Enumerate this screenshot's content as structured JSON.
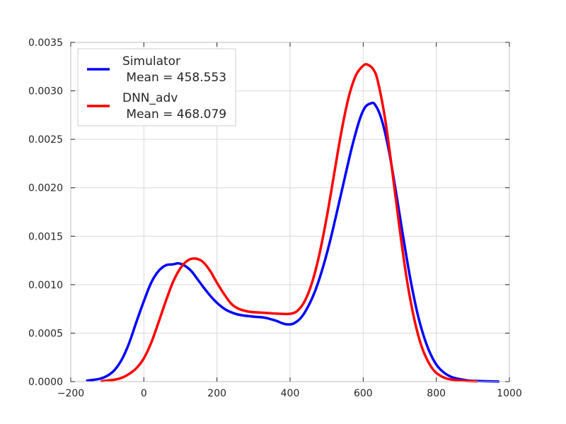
{
  "chart_data": {
    "type": "line",
    "title": "",
    "xlabel": "",
    "ylabel": "",
    "xlim": [
      -200,
      1000
    ],
    "ylim": [
      0,
      0.0035
    ],
    "xticks": [
      "−200",
      "0",
      "200",
      "400",
      "600",
      "800",
      "1000"
    ],
    "xtick_values": [
      -200,
      0,
      200,
      400,
      600,
      800,
      1000
    ],
    "yticks": [
      "0.0000",
      "0.0005",
      "0.0010",
      "0.0015",
      "0.0020",
      "0.0025",
      "0.0030",
      "0.0035"
    ],
    "ytick_values": [
      0,
      0.0005,
      0.001,
      0.0015,
      0.002,
      0.0025,
      0.003,
      0.0035
    ],
    "grid": true,
    "legend": {
      "placement": "top-left",
      "entries": [
        {
          "line1": "Simulator",
          "line2": " Mean = 458.553",
          "color": "#0000ff"
        },
        {
          "line1": "DNN_adv",
          "line2": " Mean = 468.079",
          "color": "#ff0000"
        }
      ]
    },
    "series": [
      {
        "color": "#0000ff",
        "points": [
          [
            -155,
            1e-05
          ],
          [
            -120,
            3e-05
          ],
          [
            -100,
            6e-05
          ],
          [
            -80,
            0.00012
          ],
          [
            -60,
            0.00023
          ],
          [
            -40,
            0.0004
          ],
          [
            -20,
            0.00062
          ],
          [
            0,
            0.00083
          ],
          [
            20,
            0.00102
          ],
          [
            40,
            0.00114
          ],
          [
            60,
            0.0012
          ],
          [
            80,
            0.00121
          ],
          [
            95,
            0.00122
          ],
          [
            110,
            0.0012
          ],
          [
            130,
            0.00114
          ],
          [
            150,
            0.00104
          ],
          [
            170,
            0.00094
          ],
          [
            190,
            0.00085
          ],
          [
            210,
            0.00078
          ],
          [
            230,
            0.00073
          ],
          [
            260,
            0.00069
          ],
          [
            300,
            0.00067
          ],
          [
            330,
            0.00066
          ],
          [
            360,
            0.00063
          ],
          [
            380,
            0.0006
          ],
          [
            395,
            0.00059
          ],
          [
            410,
            0.0006
          ],
          [
            430,
            0.00066
          ],
          [
            450,
            0.00078
          ],
          [
            470,
            0.00095
          ],
          [
            490,
            0.00118
          ],
          [
            510,
            0.00146
          ],
          [
            530,
            0.00178
          ],
          [
            550,
            0.00211
          ],
          [
            570,
            0.00243
          ],
          [
            590,
            0.0027
          ],
          [
            605,
            0.00283
          ],
          [
            620,
            0.00287
          ],
          [
            632,
            0.00286
          ],
          [
            650,
            0.00271
          ],
          [
            670,
            0.00239
          ],
          [
            690,
            0.00195
          ],
          [
            710,
            0.00148
          ],
          [
            730,
            0.00104
          ],
          [
            750,
            0.00068
          ],
          [
            770,
            0.00042
          ],
          [
            790,
            0.00024
          ],
          [
            810,
            0.00013
          ],
          [
            840,
            5e-05
          ],
          [
            880,
            1.5e-05
          ],
          [
            920,
            5e-06
          ],
          [
            970,
            1e-06
          ]
        ]
      },
      {
        "color": "#ff0000",
        "points": [
          [
            -115,
            5e-06
          ],
          [
            -80,
            2e-05
          ],
          [
            -60,
            4e-05
          ],
          [
            -40,
            8e-05
          ],
          [
            -20,
            0.00014
          ],
          [
            0,
            0.00024
          ],
          [
            20,
            0.0004
          ],
          [
            40,
            0.00061
          ],
          [
            60,
            0.00083
          ],
          [
            80,
            0.00103
          ],
          [
            100,
            0.00117
          ],
          [
            120,
            0.00125
          ],
          [
            140,
            0.00127
          ],
          [
            160,
            0.00124
          ],
          [
            180,
            0.00115
          ],
          [
            200,
            0.00102
          ],
          [
            220,
            0.0009
          ],
          [
            240,
            0.0008
          ],
          [
            260,
            0.00075
          ],
          [
            290,
            0.00072
          ],
          [
            330,
            0.00071
          ],
          [
            370,
            0.0007
          ],
          [
            400,
            0.0007
          ],
          [
            420,
            0.00073
          ],
          [
            440,
            0.00083
          ],
          [
            460,
            0.00102
          ],
          [
            480,
            0.00131
          ],
          [
            500,
            0.00169
          ],
          [
            520,
            0.00213
          ],
          [
            540,
            0.00257
          ],
          [
            560,
            0.00293
          ],
          [
            580,
            0.00316
          ],
          [
            600,
            0.00326
          ],
          [
            612,
            0.00327
          ],
          [
            628,
            0.00322
          ],
          [
            640,
            0.0031
          ],
          [
            660,
            0.00271
          ],
          [
            680,
            0.00216
          ],
          [
            700,
            0.00157
          ],
          [
            720,
            0.00104
          ],
          [
            740,
            0.00064
          ],
          [
            760,
            0.00036
          ],
          [
            780,
            0.00019
          ],
          [
            800,
            9e-05
          ],
          [
            830,
            3e-05
          ],
          [
            870,
            1e-05
          ],
          [
            910,
            2e-06
          ]
        ]
      }
    ]
  }
}
